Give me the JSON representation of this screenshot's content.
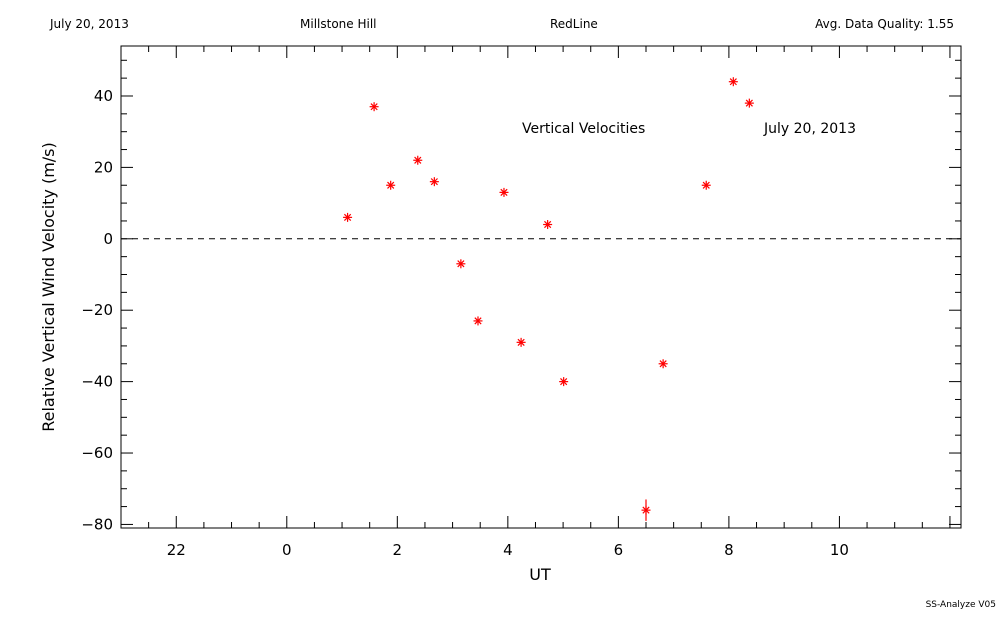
{
  "header": {
    "date": "July 20, 2013",
    "site": "Millstone Hill",
    "instrument": "RedLine",
    "quality": "Avg. Data Quality: 1.55"
  },
  "footer": "SS-Analyze V05",
  "chart_data": {
    "type": "scatter",
    "xlabel": "UT",
    "ylabel": "Relative Vertical Wind Velocity (m/s)",
    "xlim": [
      -3.0,
      12.2
    ],
    "ylim": [
      -81,
      54
    ],
    "xticks": [
      22,
      0,
      2,
      4,
      6,
      8,
      10
    ],
    "xtick_values": [
      -2,
      0,
      2,
      4,
      6,
      8,
      10
    ],
    "yticks": [
      -80,
      -60,
      -40,
      -20,
      0,
      20,
      40
    ],
    "reference_line": {
      "y": 0,
      "style": "dashed"
    },
    "annotations": [
      "Vertical Velocities",
      "July 20, 2013"
    ],
    "marker": "asterisk",
    "marker_color": "#ff0000",
    "grid": false,
    "points": [
      {
        "x": 1.1,
        "y": 6
      },
      {
        "x": 1.58,
        "y": 37
      },
      {
        "x": 1.88,
        "y": 15
      },
      {
        "x": 2.37,
        "y": 22
      },
      {
        "x": 2.67,
        "y": 16
      },
      {
        "x": 3.15,
        "y": -7
      },
      {
        "x": 3.46,
        "y": -23
      },
      {
        "x": 3.93,
        "y": 13
      },
      {
        "x": 4.24,
        "y": -29
      },
      {
        "x": 4.72,
        "y": 4
      },
      {
        "x": 5.01,
        "y": -40
      },
      {
        "x": 6.5,
        "y": -76,
        "error": 3
      },
      {
        "x": 6.81,
        "y": -35
      },
      {
        "x": 7.59,
        "y": 15
      },
      {
        "x": 8.08,
        "y": 44
      },
      {
        "x": 8.37,
        "y": 38
      }
    ]
  }
}
